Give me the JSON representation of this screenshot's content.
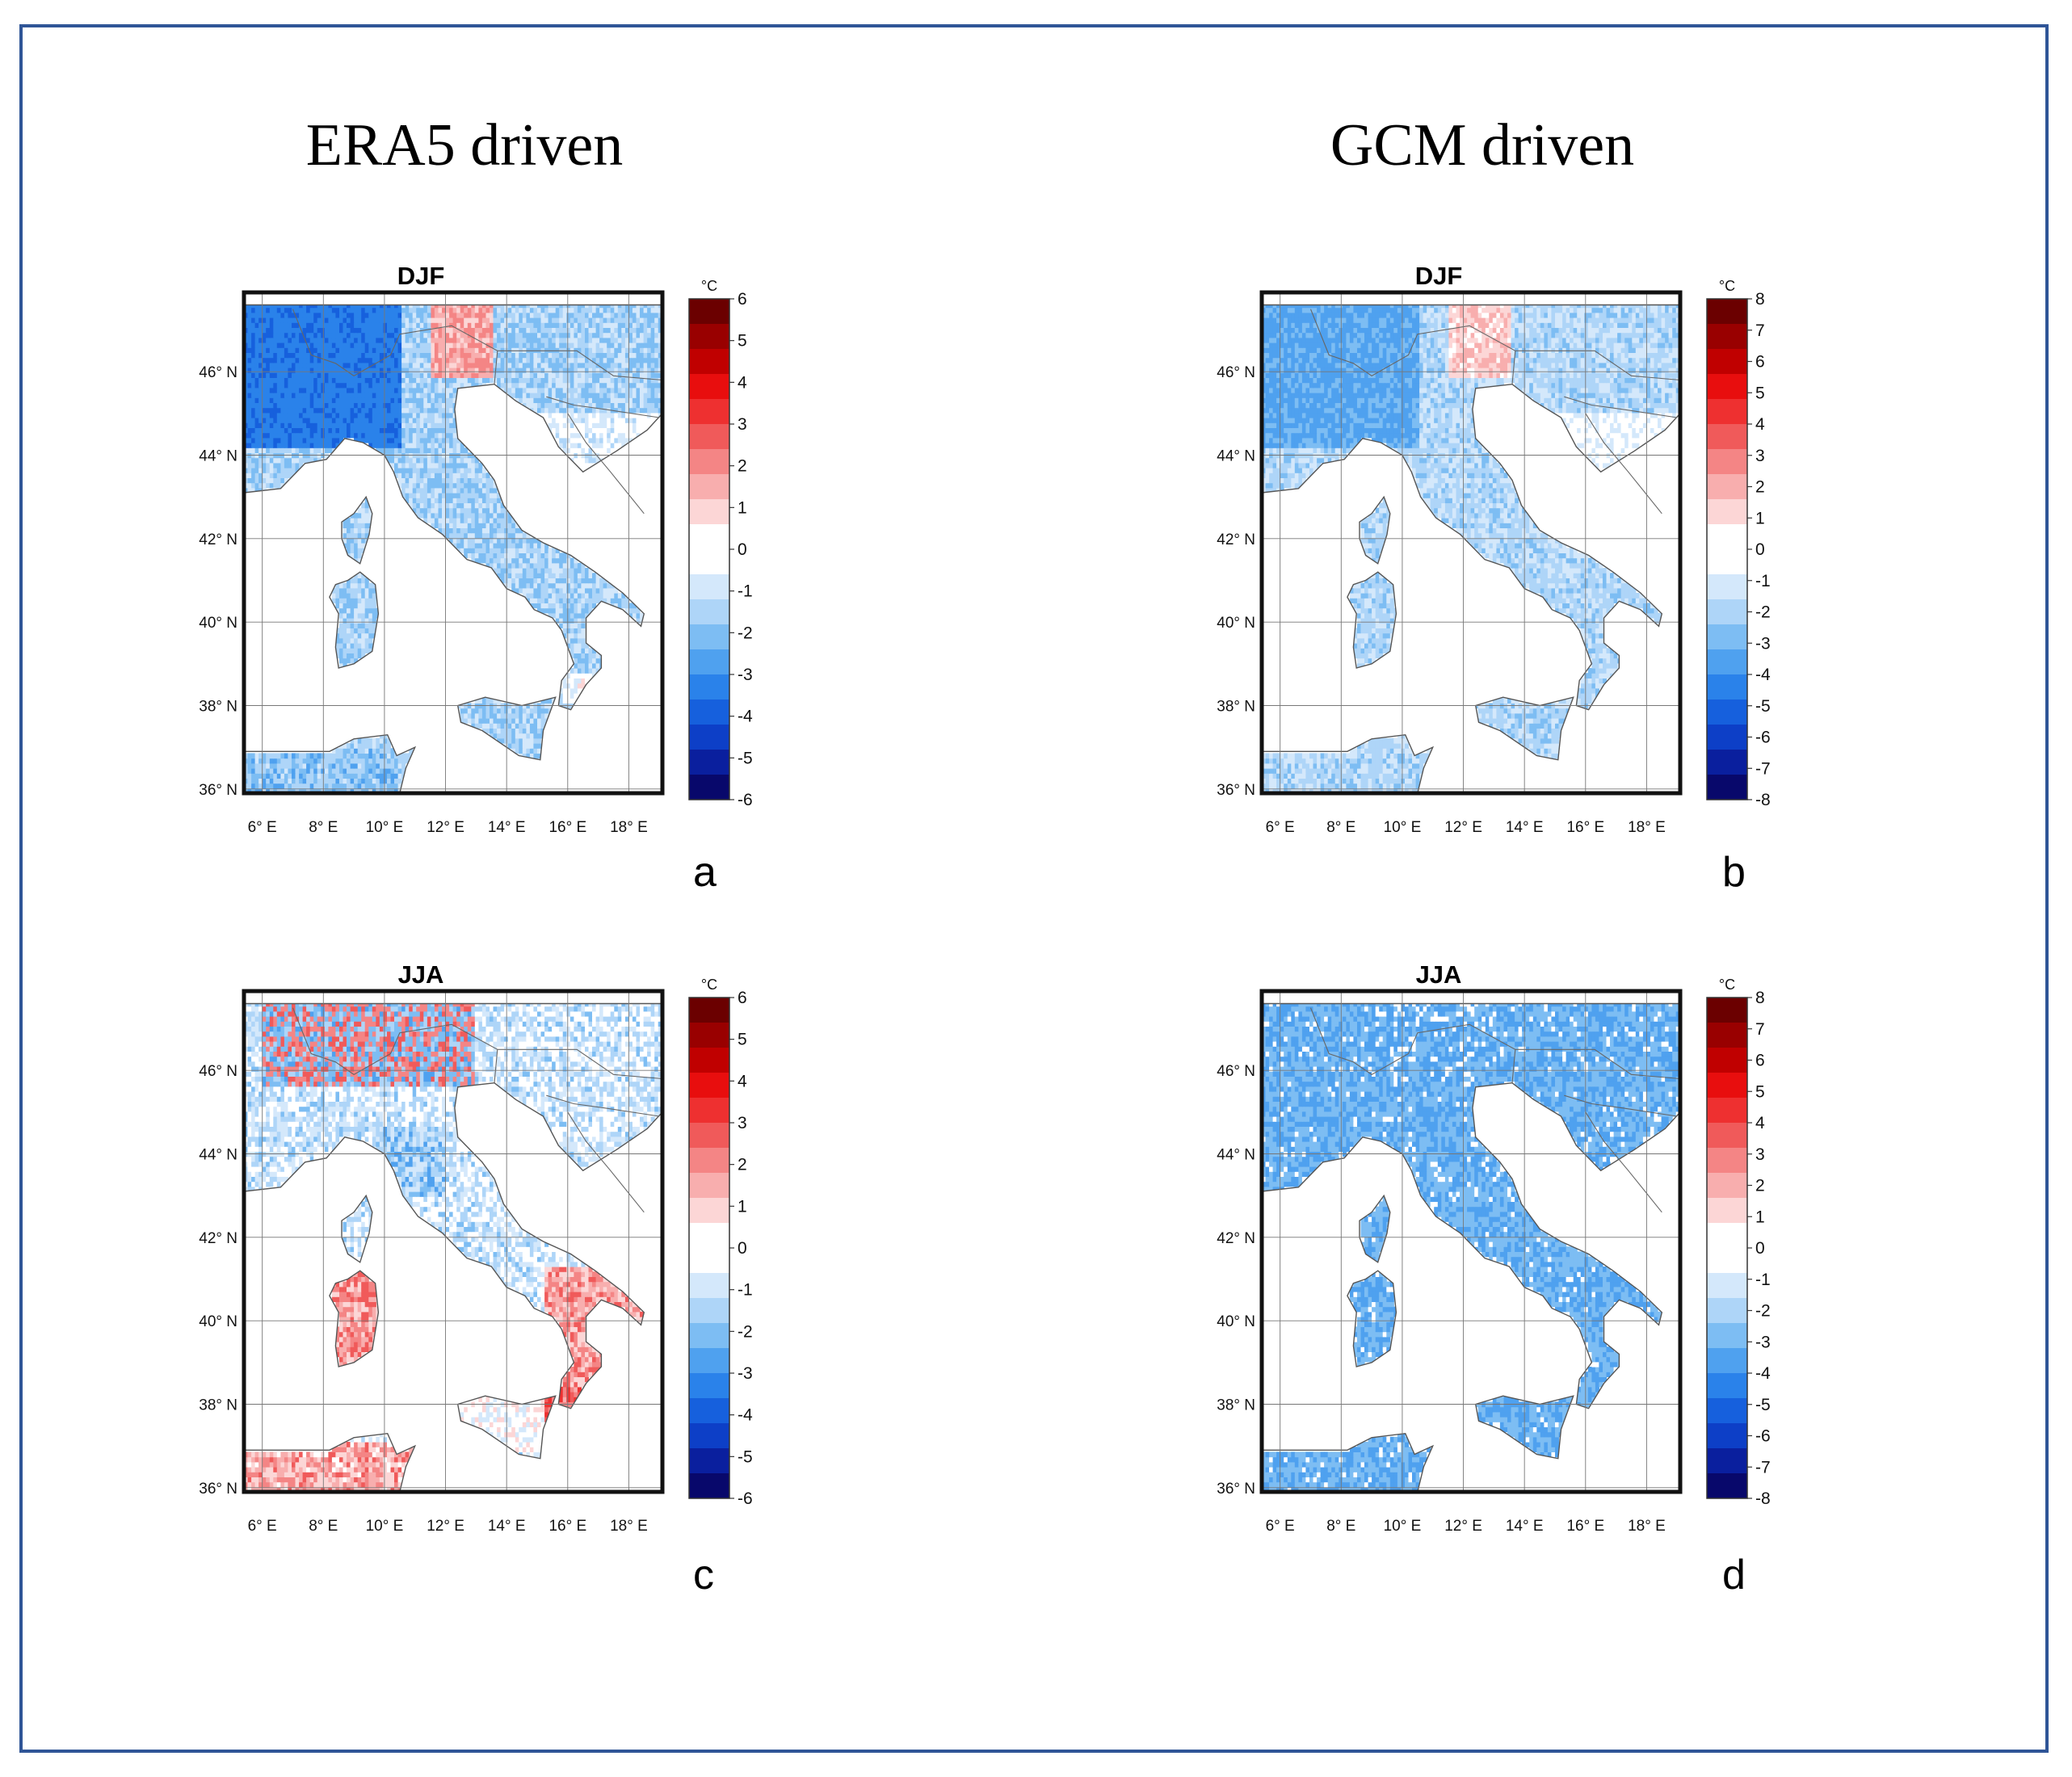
{
  "titles": {
    "left": "ERA5 driven",
    "right": "GCM driven"
  },
  "lat_ticks": [
    "46° N",
    "44° N",
    "42° N",
    "40° N",
    "38° N",
    "36° N"
  ],
  "lon_ticks": [
    "6° E",
    "8° E",
    "10° E",
    "12° E",
    "14° E",
    "16° E",
    "18° E"
  ],
  "colors": {
    "frame": "#2f5597",
    "scale": [
      "#08086b",
      "#0a1f9e",
      "#0d3fc7",
      "#1660dd",
      "#2a82ea",
      "#4fa1ef",
      "#7dbdf3",
      "#aed5f8",
      "#d4e8fb",
      "#ffffff",
      "#ffffff",
      "#fcd6d6",
      "#f8aeae",
      "#f48585",
      "#f05a5a",
      "#ee3030",
      "#e80e0e",
      "#c00000",
      "#990000",
      "#6b0000"
    ]
  },
  "panels": [
    {
      "id": "a",
      "letter": "a",
      "season": "DJF",
      "unit": "°C",
      "scale_max": 6,
      "scale_labels": [
        "6",
        "5",
        "4",
        "3",
        "2",
        "1",
        "0",
        "-1",
        "-2",
        "-3",
        "-4",
        "-5",
        "-6"
      ],
      "pattern": "djf_era5"
    },
    {
      "id": "b",
      "letter": "b",
      "season": "DJF",
      "unit": "°C",
      "scale_max": 8,
      "scale_labels": [
        "8",
        "7",
        "6",
        "5",
        "4",
        "3",
        "2",
        "1",
        "0",
        "-1",
        "-2",
        "-3",
        "-4",
        "-5",
        "-6",
        "-7",
        "-8"
      ],
      "pattern": "djf_gcm"
    },
    {
      "id": "c",
      "letter": "c",
      "season": "JJA",
      "unit": "°C",
      "scale_max": 6,
      "scale_labels": [
        "6",
        "5",
        "4",
        "3",
        "2",
        "1",
        "0",
        "-1",
        "-2",
        "-3",
        "-4",
        "-5",
        "-6"
      ],
      "pattern": "jja_era5"
    },
    {
      "id": "d",
      "letter": "d",
      "season": "JJA",
      "unit": "°C",
      "scale_max": 8,
      "scale_labels": [
        "8",
        "7",
        "6",
        "5",
        "4",
        "3",
        "2",
        "1",
        "0",
        "-1",
        "-2",
        "-3",
        "-4",
        "-5",
        "-6",
        "-7",
        "-8"
      ],
      "pattern": "jja_gcm"
    }
  ]
}
